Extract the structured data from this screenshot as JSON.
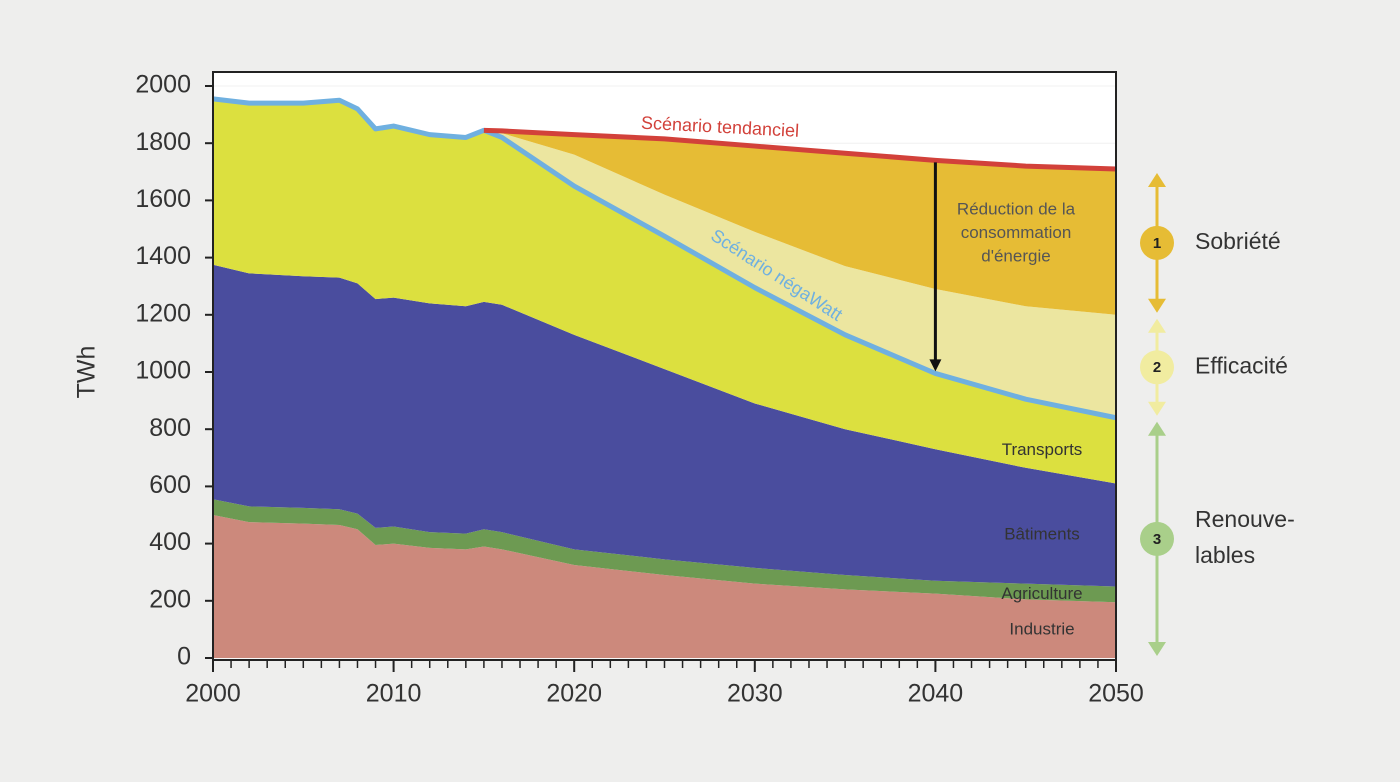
{
  "chart_data": {
    "type": "stacked-area",
    "y_label": "TWh",
    "x": [
      2000,
      2002,
      2005,
      2007,
      2008,
      2009,
      2010,
      2012,
      2014,
      2015,
      2016,
      2020,
      2025,
      2030,
      2035,
      2040,
      2045,
      2050
    ],
    "xlim": [
      2000,
      2050
    ],
    "xticks": [
      2000,
      2010,
      2020,
      2030,
      2040,
      2050
    ],
    "ylim": [
      0,
      2000
    ],
    "yticks": [
      0,
      200,
      400,
      600,
      800,
      1000,
      1200,
      1400,
      1600,
      1800,
      2000
    ],
    "grid": true,
    "series": [
      {
        "name": "Industrie",
        "color": "#cc897c",
        "label_color": "#8c5f55",
        "values": [
          500,
          475,
          470,
          465,
          450,
          395,
          400,
          385,
          380,
          390,
          380,
          325,
          290,
          260,
          240,
          225,
          205,
          195
        ]
      },
      {
        "name": "Agriculture",
        "color": "#6d9a52",
        "label_color": "#ffffff",
        "values": [
          55,
          55,
          55,
          55,
          55,
          60,
          60,
          55,
          55,
          60,
          60,
          55,
          55,
          55,
          50,
          45,
          55,
          55
        ]
      },
      {
        "name": "Bâtiments",
        "color": "#4a4d9e",
        "label_color": "#ffffff",
        "values": [
          820,
          815,
          810,
          810,
          805,
          800,
          800,
          800,
          795,
          795,
          795,
          750,
          665,
          575,
          510,
          460,
          405,
          360
        ]
      },
      {
        "name": "Transports",
        "color": "#dce03f",
        "label_color": "#333333",
        "values": [
          580,
          595,
          605,
          620,
          610,
          595,
          600,
          590,
          590,
          600,
          585,
          520,
          465,
          405,
          330,
          265,
          240,
          230
        ]
      },
      {
        "color": "#ece6a0",
        "values": [
          null,
          null,
          null,
          null,
          null,
          null,
          null,
          null,
          null,
          0,
          15,
          110,
          145,
          195,
          240,
          295,
          325,
          360
        ]
      },
      {
        "color": "#e6bc35",
        "values": [
          null,
          null,
          null,
          null,
          null,
          null,
          null,
          null,
          null,
          0,
          8,
          70,
          195,
          300,
          395,
          450,
          490,
          510
        ]
      }
    ],
    "lines": [
      {
        "name": "Scénario négaWatt",
        "color": "#6fb0e0",
        "values": [
          1955,
          1940,
          1940,
          1950,
          1920,
          1850,
          1860,
          1830,
          1820,
          1845,
          1820,
          1650,
          1475,
          1295,
          1130,
          995,
          905,
          840
        ]
      },
      {
        "name": "Scénario tendanciel",
        "color": "#d2413a",
        "values": [
          null,
          null,
          null,
          null,
          null,
          null,
          null,
          null,
          null,
          1845,
          1843,
          1830,
          1815,
          1790,
          1765,
          1740,
          1720,
          1710
        ]
      }
    ],
    "annotation": [
      "Réduction de la",
      "consommation",
      "d'énergie"
    ],
    "side_labels": [
      {
        "number": "1",
        "lines": [
          "Sobriété"
        ],
        "color": "#e6bc35"
      },
      {
        "number": "2",
        "lines": [
          "Efficacité"
        ],
        "color": "#f1eca0"
      },
      {
        "number": "3",
        "lines": [
          "Renouve-",
          "lables"
        ],
        "color": "#a9cf8a"
      }
    ]
  }
}
